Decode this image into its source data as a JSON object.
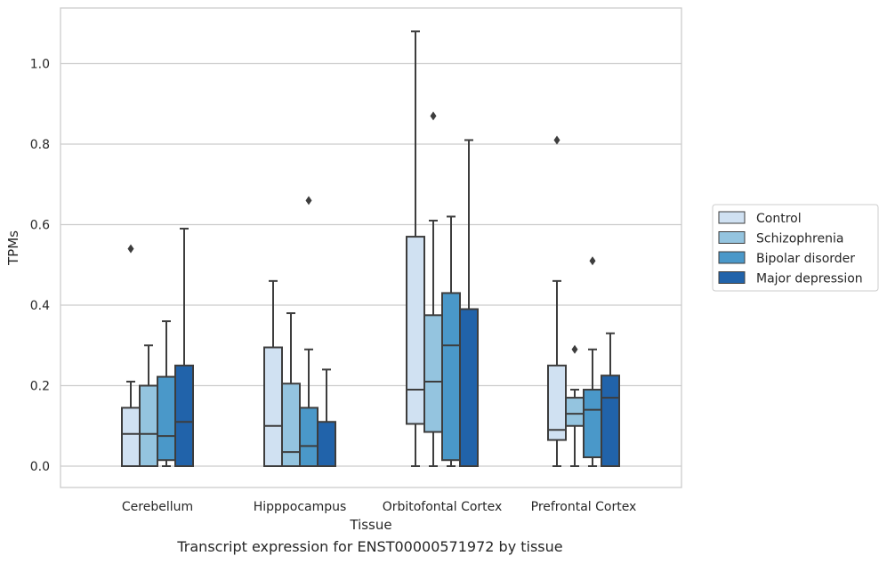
{
  "caption": "Transcript expression for ENST00000571972 by tissue",
  "chart_data": {
    "type": "box",
    "title": "",
    "xlabel": "Tissue",
    "ylabel": "TPMs",
    "ylim": [
      -0.05,
      1.14
    ],
    "yticks": [
      0.0,
      0.2,
      0.4,
      0.6,
      0.8,
      1.0
    ],
    "ytick_labels": [
      "0.0",
      "0.2",
      "0.4",
      "0.6",
      "0.8",
      "1.0"
    ],
    "grid": "horizontal",
    "legend_position": "right",
    "categories": [
      "Cerebellum",
      "Hipppocampus",
      "Orbitofontal Cortex",
      "Prefrontal Cortex"
    ],
    "series": [
      {
        "name": "Control",
        "color": "#d0e1f2",
        "boxes": [
          {
            "whislo": 0.0,
            "q1": 0.0,
            "med": 0.08,
            "q3": 0.145,
            "whishi": 0.21,
            "fliers": [
              0.54
            ]
          },
          {
            "whislo": 0.0,
            "q1": 0.0,
            "med": 0.1,
            "q3": 0.295,
            "whishi": 0.46,
            "fliers": []
          },
          {
            "whislo": 0.0,
            "q1": 0.105,
            "med": 0.19,
            "q3": 0.57,
            "whishi": 1.08,
            "fliers": []
          },
          {
            "whislo": 0.0,
            "q1": 0.065,
            "med": 0.09,
            "q3": 0.25,
            "whishi": 0.46,
            "fliers": [
              0.81
            ]
          }
        ]
      },
      {
        "name": "Schizophrenia",
        "color": "#94c4df",
        "boxes": [
          {
            "whislo": 0.0,
            "q1": 0.0,
            "med": 0.08,
            "q3": 0.2,
            "whishi": 0.3,
            "fliers": []
          },
          {
            "whislo": 0.0,
            "q1": 0.0,
            "med": 0.035,
            "q3": 0.205,
            "whishi": 0.38,
            "fliers": []
          },
          {
            "whislo": 0.0,
            "q1": 0.085,
            "med": 0.21,
            "q3": 0.375,
            "whishi": 0.61,
            "fliers": [
              0.87
            ]
          },
          {
            "whislo": 0.0,
            "q1": 0.1,
            "med": 0.13,
            "q3": 0.17,
            "whishi": 0.19,
            "fliers": [
              0.29
            ]
          }
        ]
      },
      {
        "name": "Bipolar disorder",
        "color": "#4a98c9",
        "boxes": [
          {
            "whislo": 0.0,
            "q1": 0.015,
            "med": 0.075,
            "q3": 0.222,
            "whishi": 0.36,
            "fliers": []
          },
          {
            "whislo": 0.0,
            "q1": 0.0,
            "med": 0.05,
            "q3": 0.145,
            "whishi": 0.29,
            "fliers": [
              0.66
            ]
          },
          {
            "whislo": 0.0,
            "q1": 0.015,
            "med": 0.3,
            "q3": 0.43,
            "whishi": 0.62,
            "fliers": []
          },
          {
            "whislo": 0.0,
            "q1": 0.022,
            "med": 0.14,
            "q3": 0.19,
            "whishi": 0.29,
            "fliers": [
              0.51
            ]
          }
        ]
      },
      {
        "name": "Major depression",
        "color": "#2163aa",
        "boxes": [
          {
            "whislo": 0.0,
            "q1": 0.0,
            "med": 0.11,
            "q3": 0.25,
            "whishi": 0.59,
            "fliers": []
          },
          {
            "whislo": 0.0,
            "q1": 0.0,
            "med": 0.0,
            "q3": 0.11,
            "whishi": 0.24,
            "fliers": []
          },
          {
            "whislo": 0.0,
            "q1": 0.0,
            "med": 0.39,
            "q3": 0.39,
            "whishi": 0.81,
            "fliers": []
          },
          {
            "whislo": 0.0,
            "q1": 0.0,
            "med": 0.17,
            "q3": 0.225,
            "whishi": 0.33,
            "fliers": []
          }
        ]
      }
    ]
  }
}
